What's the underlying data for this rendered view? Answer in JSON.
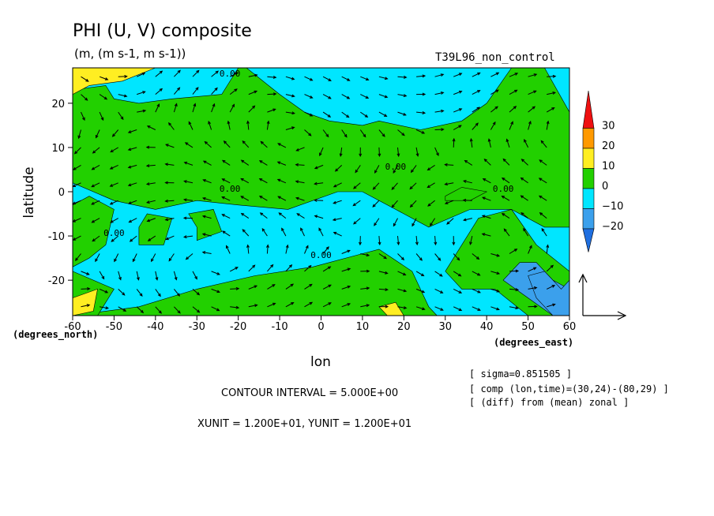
{
  "chart_data": {
    "type": "heatmap",
    "title": "PHI (U, V) composite",
    "subtitle": "(m, (m s-1, m s-1))",
    "run_label": "T39L96_non_control",
    "xlabel": "lon",
    "ylabel": "latitude",
    "x_unit_note": "(degrees_east)",
    "y_unit_note": "(degrees_north)",
    "xlim": [
      -60,
      60
    ],
    "ylim": [
      -28,
      28
    ],
    "x_ticks": [
      -60,
      -50,
      -40,
      -30,
      -20,
      -10,
      0,
      10,
      20,
      30,
      40,
      50,
      60
    ],
    "y_ticks": [
      -20,
      -10,
      0,
      10,
      20
    ],
    "x_tick_labels": [
      "-60",
      "-50",
      "-40",
      "-30",
      "-20",
      "-10",
      "0",
      "10",
      "20",
      "30",
      "40",
      "50",
      "60"
    ],
    "y_tick_labels": [
      "-20",
      "-10",
      "0",
      "10",
      "20"
    ],
    "color_levels": [
      {
        "range": [
          -25,
          -20
        ],
        "color": "#1f6fe0"
      },
      {
        "range": [
          -20,
          -10
        ],
        "color": "#3ba0ec"
      },
      {
        "range": [
          -10,
          0
        ],
        "color": "#00e6ff"
      },
      {
        "range": [
          0,
          10
        ],
        "color": "#22d000"
      },
      {
        "range": [
          10,
          20
        ],
        "color": "#ffee22"
      },
      {
        "range": [
          20,
          30
        ],
        "color": "#ff9900"
      },
      {
        "range": [
          30,
          35
        ],
        "color": "#ee1010"
      }
    ],
    "colorbar_labels": [
      "30",
      "20",
      "10",
      "0",
      "−10",
      "−20"
    ],
    "contour_labels": [
      "0.00",
      "0.00",
      "0.00",
      "0.00",
      "0.00",
      "0.00"
    ],
    "info_lines": [
      "[ sigma=0.851505 ]",
      "[ comp (lon,time)=(30,24)-(80,29) ]",
      "[ (diff) from (mean) zonal ]"
    ],
    "contour_interval": "CONTOUR INTERVAL = 5.000E+00",
    "unit_vectors": "XUNIT = 1.200E+01, YUNIT = 1.200E+01",
    "field_regions": [
      {
        "level": 0,
        "lon": [
          -60,
          -52,
          -50,
          -44,
          -36,
          -24,
          -20,
          -18,
          -10,
          -4,
          2,
          10,
          14,
          24,
          34,
          40,
          46,
          54,
          60,
          60,
          54,
          46,
          36,
          26,
          18,
          10,
          4,
          -8,
          -20,
          -30,
          -40,
          -50,
          -60
        ],
        "lat": [
          23,
          24,
          21,
          20,
          21,
          22,
          28,
          28,
          22,
          18,
          16,
          15,
          16,
          14,
          16,
          20,
          28,
          28,
          18,
          -8,
          -8,
          -4,
          -4,
          -8,
          -4,
          0,
          0,
          -4,
          -3,
          -2,
          -4,
          -2,
          2
        ]
      },
      {
        "level": 0,
        "lon": [
          -60,
          -56,
          -52,
          -50,
          -56,
          -60
        ],
        "lat": [
          -17,
          -15,
          -12,
          -4,
          -1,
          -3
        ]
      },
      {
        "level": 0,
        "lon": [
          -44,
          -38,
          -36,
          -42,
          -44
        ],
        "lat": [
          -12,
          -12,
          -6,
          -5,
          -8
        ]
      },
      {
        "level": 0,
        "lon": [
          -30,
          -24,
          -26,
          -32,
          -30
        ],
        "lat": [
          -11,
          -9,
          -4,
          -5,
          -8
        ]
      },
      {
        "level": 0,
        "lon": [
          -60,
          -44,
          -30,
          -16,
          -2,
          10,
          14,
          22,
          26,
          28,
          24,
          20,
          10,
          0,
          -12,
          -24,
          -36,
          -46,
          -52,
          -60
        ],
        "lat": [
          -28,
          -26,
          -22,
          -19,
          -17,
          -14,
          -13,
          -18,
          -26,
          -28,
          -28,
          -28,
          -28,
          -28,
          -28,
          -28,
          -28,
          -28,
          -28,
          -28
        ]
      },
      {
        "level": 0,
        "lon": [
          -60,
          -50,
          -54,
          -60
        ],
        "lat": [
          -18,
          -22,
          -28,
          -28
        ]
      },
      {
        "level": 0,
        "lon": [
          38,
          46,
          52,
          60,
          60,
          50,
          42,
          34,
          30,
          38
        ],
        "lat": [
          -6,
          -4,
          -12,
          -18,
          -28,
          -28,
          -22,
          -22,
          -18,
          -6
        ]
      },
      {
        "level": 0,
        "lon": [
          30,
          36,
          40,
          34,
          30
        ],
        "lat": [
          -2,
          -2,
          0,
          1,
          -1
        ]
      },
      {
        "level": -1,
        "lon": [
          44,
          48,
          52,
          56,
          60,
          60,
          56,
          50,
          44
        ],
        "lat": [
          -20,
          -16,
          -16,
          -20,
          -22,
          -28,
          -28,
          -24,
          -20
        ]
      },
      {
        "level": -1,
        "lon": [
          50,
          54,
          56,
          58,
          60,
          60,
          56,
          52,
          50
        ],
        "lat": [
          -19,
          -18,
          -20,
          -22,
          -20,
          -28,
          -28,
          -24,
          -19
        ]
      },
      {
        "level": 1,
        "lon": [
          -60,
          -56,
          -48,
          -40,
          -32,
          -40,
          -52,
          -60
        ],
        "lat": [
          22,
          24,
          25,
          28,
          28,
          28,
          28,
          28
        ]
      },
      {
        "level": 1,
        "lon": [
          -60,
          -54,
          -55,
          -60
        ],
        "lat": [
          -24,
          -22,
          -27,
          -28
        ]
      },
      {
        "level": 1,
        "lon": [
          14,
          18,
          20,
          16,
          14
        ],
        "lat": [
          -26,
          -25,
          -28,
          -28,
          -26
        ]
      }
    ]
  }
}
